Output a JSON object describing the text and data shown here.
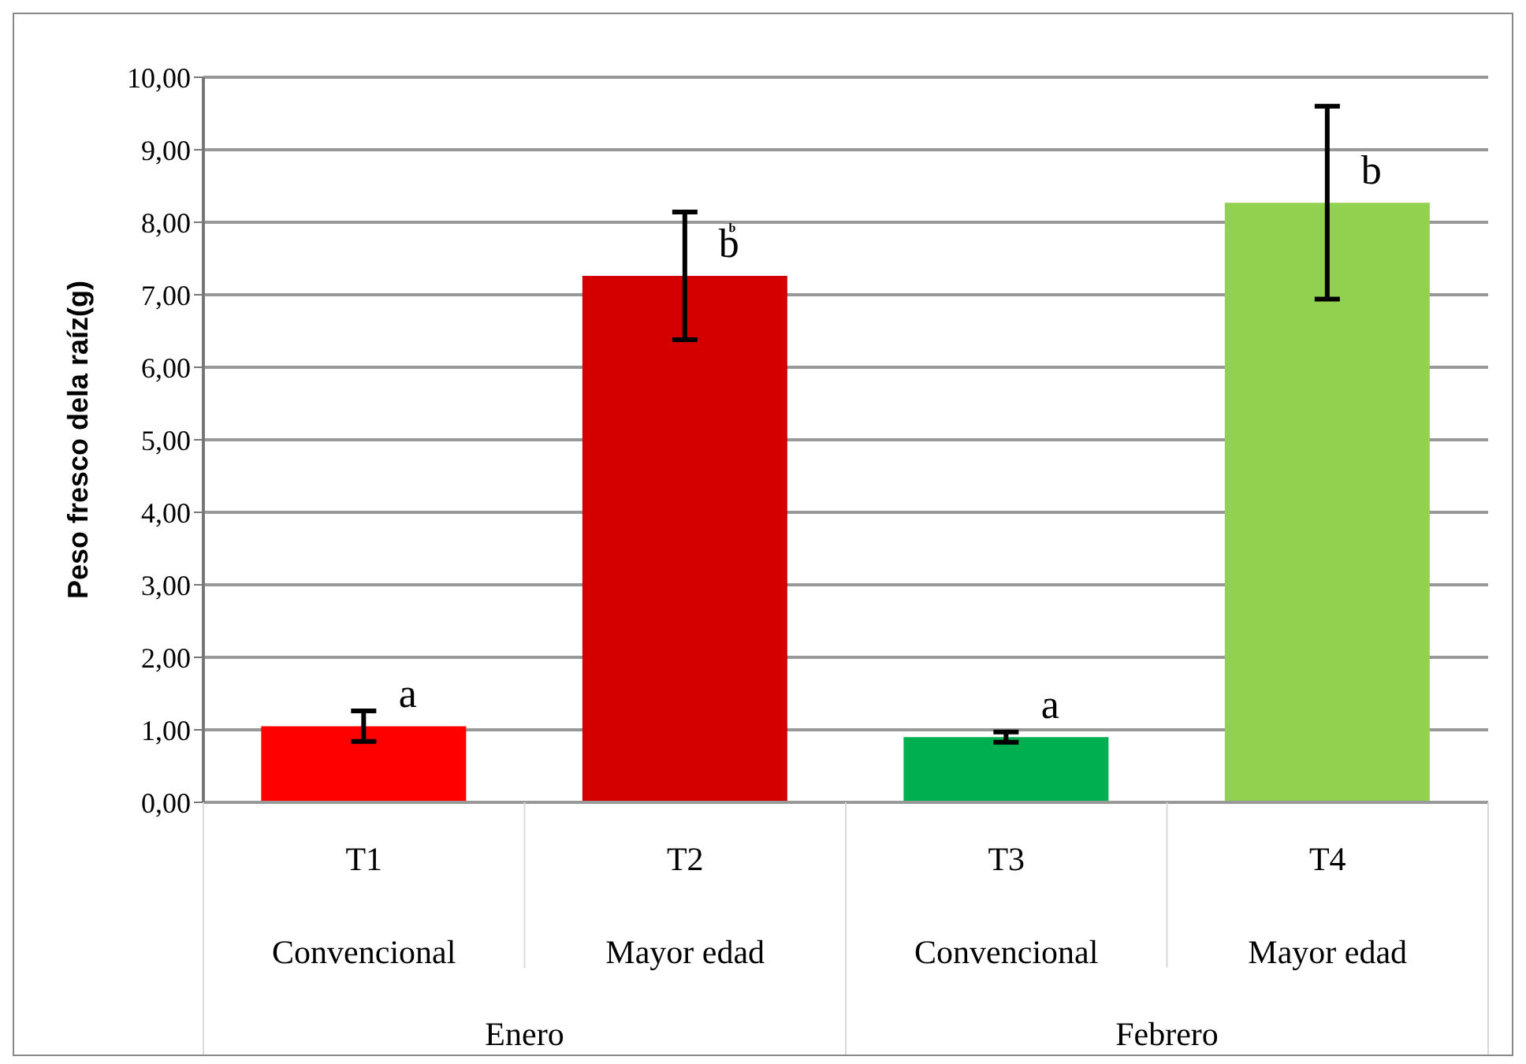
{
  "chart_data": {
    "type": "bar",
    "ylabel": "Peso fresco dela raíz(g)",
    "categories": [
      "T1",
      "T2",
      "T3",
      "T4"
    ],
    "values": [
      1.05,
      7.26,
      0.9,
      8.27
    ],
    "colors": [
      "#ff0000",
      "#d40000",
      "#00b050",
      "#92d050"
    ],
    "errors": [
      0.21,
      0.88,
      0.07,
      1.33
    ],
    "ylim": [
      0,
      10
    ],
    "yticks": [
      {
        "value": 0,
        "label": "0,00"
      },
      {
        "value": 1,
        "label": "1,00"
      },
      {
        "value": 2,
        "label": "2,00"
      },
      {
        "value": 3,
        "label": "3,00"
      },
      {
        "value": 4,
        "label": "4,00"
      },
      {
        "value": 5,
        "label": "5,00"
      },
      {
        "value": 6,
        "label": "6,00"
      },
      {
        "value": 7,
        "label": "7,00"
      },
      {
        "value": 8,
        "label": "8,00"
      },
      {
        "value": 9,
        "label": "9,00"
      },
      {
        "value": 10,
        "label": "10,00"
      }
    ],
    "grid": "y",
    "value_labels": [
      "a",
      "b",
      "a",
      "b"
    ],
    "annotations": [
      "b",
      "Convencional",
      "Mayor edad",
      "Convencional",
      "Mayor edad",
      "Enero",
      "Febrero"
    ]
  }
}
